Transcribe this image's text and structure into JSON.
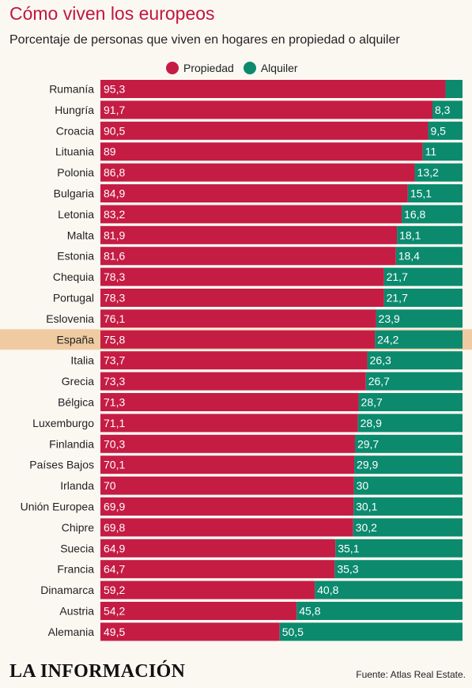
{
  "header": {
    "title": "Cómo viven los europeos",
    "subtitle": "Porcentaje de personas que viven en hogares en propiedad o alquiler"
  },
  "footer": {
    "logo": "LA INFORMACIÓN",
    "source": "Fuente: Atlas Real Estate."
  },
  "colors": {
    "propiedad": "#c51c44",
    "alquiler": "#0b8a6e",
    "highlight": "#f0cba1",
    "title": "#c0173f"
  },
  "chart_data": {
    "type": "bar",
    "orientation": "horizontal",
    "stacked": true,
    "xlim": [
      0,
      100
    ],
    "highlight": "España",
    "legend_position": "top",
    "series": [
      {
        "name": "Propiedad",
        "color": "#c51c44",
        "values": [
          95.3,
          91.7,
          90.5,
          89,
          86.8,
          84.9,
          83.2,
          81.9,
          81.6,
          78.3,
          78.3,
          76.1,
          75.8,
          73.7,
          73.3,
          71.3,
          71.1,
          70.3,
          70.1,
          70,
          69.9,
          69.8,
          64.9,
          64.7,
          59.2,
          54.2,
          49.5
        ]
      },
      {
        "name": "Alquiler",
        "color": "#0b8a6e",
        "values": [
          4.7,
          8.3,
          9.5,
          11,
          13.2,
          15.1,
          16.8,
          18.1,
          18.4,
          21.7,
          21.7,
          23.9,
          24.2,
          26.3,
          26.7,
          28.7,
          28.9,
          29.7,
          29.9,
          30,
          30.1,
          30.2,
          35.1,
          35.3,
          40.8,
          45.8,
          50.5
        ]
      }
    ],
    "categories": [
      "Rumanía",
      "Hungría",
      "Croacia",
      "Lituania",
      "Polonia",
      "Bulgaria",
      "Letonia",
      "Malta",
      "Estonia",
      "Chequia",
      "Portugal",
      "Eslovenia",
      "España",
      "Italia",
      "Grecia",
      "Bélgica",
      "Luxemburgo",
      "Finlandia",
      "Países Bajos",
      "Irlanda",
      "Unión Europea",
      "Chipre",
      "Suecia",
      "Francia",
      "Dinamarca",
      "Austria",
      "Alemania"
    ],
    "propiedad_labels": [
      "95,3",
      "91,7",
      "90,5",
      "89",
      "86,8",
      "84,9",
      "83,2",
      "81,9",
      "81,6",
      "78,3",
      "78,3",
      "76,1",
      "75,8",
      "73,7",
      "73,3",
      "71,3",
      "71,1",
      "70,3",
      "70,1",
      "70",
      "69,9",
      "69,8",
      "64,9",
      "64,7",
      "59,2",
      "54,2",
      "49,5"
    ],
    "alquiler_labels": [
      "",
      "8,3",
      "9,5",
      "11",
      "13,2",
      "15,1",
      "16,8",
      "18,1",
      "18,4",
      "21,7",
      "21,7",
      "23,9",
      "24,2",
      "26,3",
      "26,7",
      "28,7",
      "28,9",
      "29,7",
      "29,9",
      "30",
      "30,1",
      "30,2",
      "35,1",
      "35,3",
      "40,8",
      "45,8",
      "50,5"
    ]
  }
}
